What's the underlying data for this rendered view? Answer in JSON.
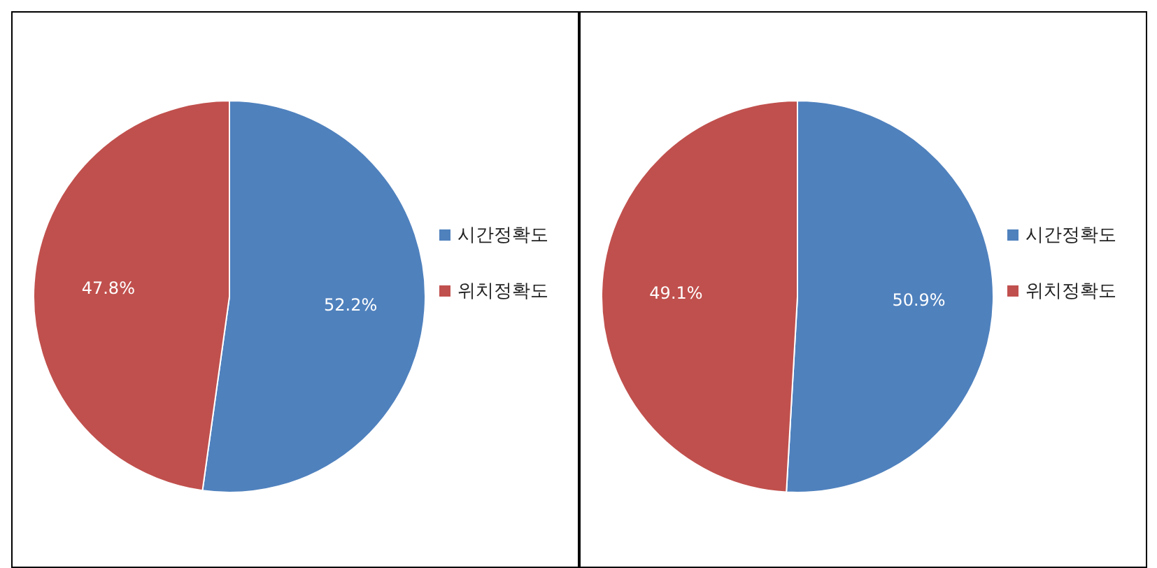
{
  "chart_data": [
    {
      "type": "pie",
      "categories": [
        "시간정확도",
        "위치정확도"
      ],
      "values": [
        52.2,
        47.8
      ],
      "colors": [
        "#4f81bd",
        "#c0504d"
      ],
      "value_labels": [
        "52.2%",
        "47.8%"
      ],
      "legend": "right"
    },
    {
      "type": "pie",
      "categories": [
        "시간정확도",
        "위치정확도"
      ],
      "values": [
        50.9,
        49.1
      ],
      "colors": [
        "#4f81bd",
        "#c0504d"
      ],
      "value_labels": [
        "50.9%",
        "49.1%"
      ],
      "legend": "right"
    }
  ]
}
